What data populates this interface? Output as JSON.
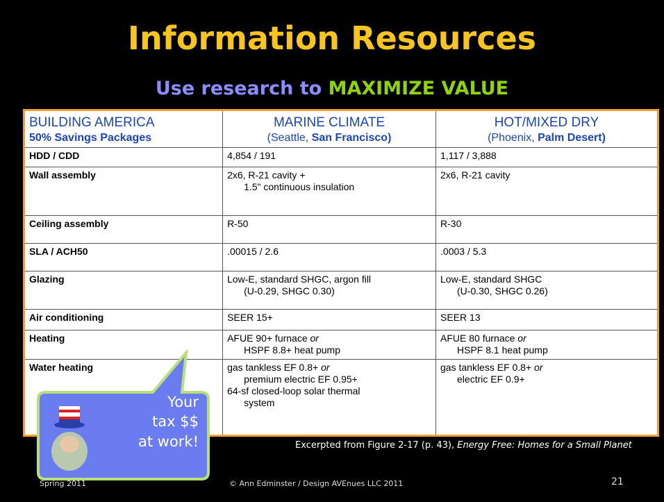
{
  "title": "Information Resources",
  "subtitle": {
    "lead": "Use research to",
    "emphasis": "MAXIMIZE VALUE"
  },
  "table": {
    "header": [
      [
        "BUILDING AMERICA",
        "50% Savings Packages"
      ],
      [
        "MARINE CLIMATE",
        "(Seattle,",
        "San Francisco)"
      ],
      [
        "HOT/MIXED DRY",
        "(Phoenix,",
        "Palm Desert)"
      ]
    ],
    "rows": [
      [
        "HDD / CDD",
        [
          "4,854 / 191"
        ],
        [
          "1,117 / 3,888"
        ]
      ],
      [
        "Wall assembly",
        [
          "2x6, R-21 cavity +",
          "1.5\" continuous insulation"
        ],
        [
          "2x6, R-21 cavity"
        ]
      ],
      [
        "Ceiling assembly",
        [
          "R-50"
        ],
        [
          "R-30"
        ]
      ],
      [
        "SLA / ACH50",
        [
          ".00015 / 2.6"
        ],
        [
          ".0003 / 5.3"
        ]
      ],
      [
        "Glazing",
        [
          "Low-E, standard SHGC, argon fill",
          "(U-0.29, SHGC 0.30)"
        ],
        [
          "Low-E, standard SHGC",
          "(U-0.30, SHGC 0.26)"
        ]
      ],
      [
        "Air conditioning",
        [
          "SEER 15+"
        ],
        [
          "SEER 13"
        ]
      ],
      [
        "Heating",
        [
          "AFUE 90+ furnace",
          "or",
          "HSPF 8.8+ heat pump"
        ],
        [
          "AFUE 80 furnace",
          "or",
          "HSPF 8.1 heat pump"
        ]
      ],
      [
        "Water heating",
        [
          "gas tankless EF 0.8+",
          "or",
          "premium electric EF 0.95+",
          "64-sf closed-loop solar thermal",
          "system"
        ],
        [
          "gas tankless EF 0.8+",
          "or",
          "electric EF 0.9+"
        ]
      ]
    ]
  },
  "callout": [
    "Your",
    "tax $$",
    "at work!"
  ],
  "caption": {
    "text": "Excerpted from Figure 2-17 (p. 43),",
    "source": "Energy Free: Homes for a Small Planet"
  },
  "footer": {
    "left": "Spring 2011",
    "center": "© Ann Edminster / Design AVEnues LLC  2011",
    "page": "21"
  }
}
